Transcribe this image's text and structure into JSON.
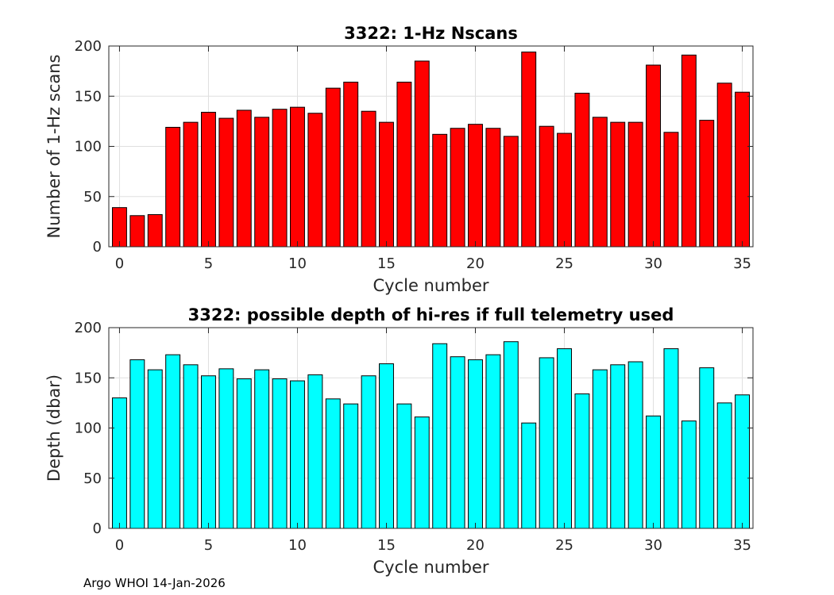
{
  "chart_data": [
    {
      "type": "bar",
      "title": "3322: 1-Hz Nscans",
      "xlabel": "Cycle number",
      "ylabel": "Number of 1-Hz scans",
      "x": [
        0,
        1,
        2,
        3,
        4,
        5,
        6,
        7,
        8,
        9,
        10,
        11,
        12,
        13,
        14,
        15,
        16,
        17,
        18,
        19,
        20,
        21,
        22,
        23,
        24,
        25,
        26,
        27,
        28,
        29,
        30,
        31,
        32,
        33,
        34,
        35
      ],
      "values": [
        39,
        31,
        32,
        119,
        124,
        134,
        128,
        136,
        129,
        137,
        139,
        133,
        158,
        164,
        135,
        124,
        164,
        185,
        112,
        118,
        122,
        118,
        110,
        194,
        120,
        113,
        153,
        129,
        124,
        124,
        181,
        114,
        191,
        126,
        163,
        154
      ],
      "xlim": [
        -0.6,
        35.6
      ],
      "ylim": [
        0,
        200
      ],
      "xticks": [
        0,
        5,
        10,
        15,
        20,
        25,
        30,
        35
      ],
      "yticks": [
        0,
        50,
        100,
        150,
        200
      ],
      "bar_color": "#ff0000",
      "grid": true
    },
    {
      "type": "bar",
      "title": "3322: possible depth of hi-res if full telemetry used",
      "xlabel": "Cycle number",
      "ylabel": "Depth (dbar)",
      "x": [
        0,
        1,
        2,
        3,
        4,
        5,
        6,
        7,
        8,
        9,
        10,
        11,
        12,
        13,
        14,
        15,
        16,
        17,
        18,
        19,
        20,
        21,
        22,
        23,
        24,
        25,
        26,
        27,
        28,
        29,
        30,
        31,
        32,
        33,
        34,
        35
      ],
      "values": [
        130,
        168,
        158,
        173,
        163,
        152,
        159,
        149,
        158,
        149,
        147,
        153,
        129,
        124,
        152,
        164,
        124,
        111,
        184,
        171,
        168,
        173,
        186,
        105,
        170,
        179,
        134,
        158,
        163,
        166,
        112,
        179,
        107,
        160,
        125,
        133
      ],
      "xlim": [
        -0.6,
        35.6
      ],
      "ylim": [
        0,
        200
      ],
      "xticks": [
        0,
        5,
        10,
        15,
        20,
        25,
        30,
        35
      ],
      "yticks": [
        0,
        50,
        100,
        150,
        200
      ],
      "bar_color": "#00ffff",
      "grid": true
    }
  ],
  "footer": "Argo WHOI 14-Jan-2026"
}
